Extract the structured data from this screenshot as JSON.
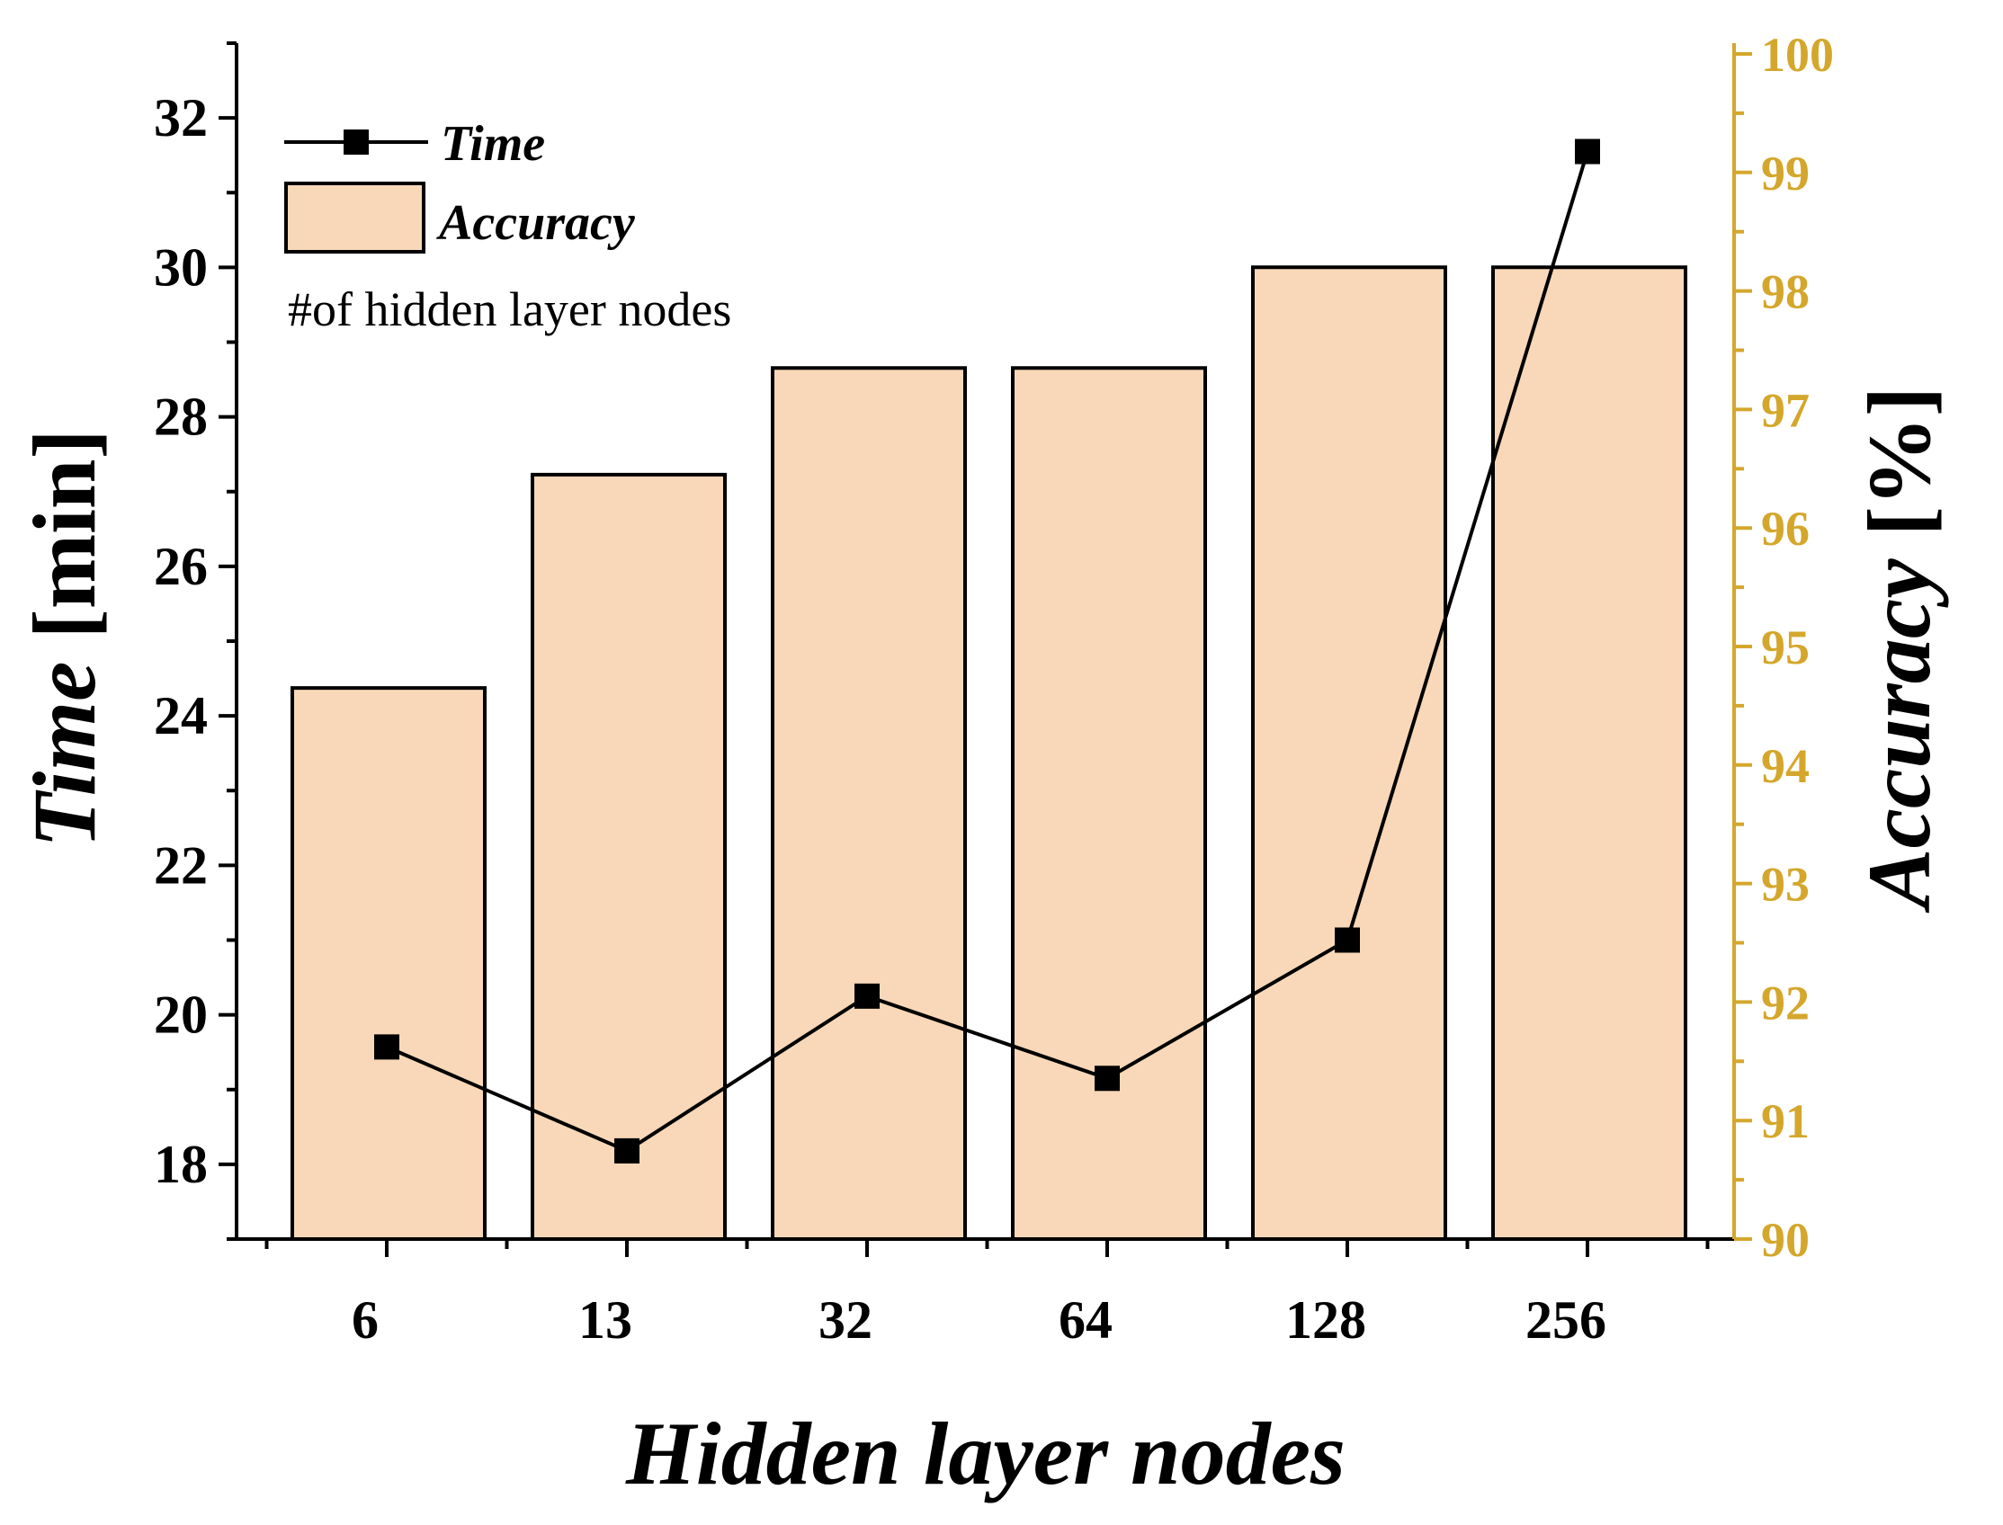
{
  "chart_data": {
    "type": "bar+line",
    "categories": [
      "6",
      "13",
      "32",
      "64",
      "128",
      "256"
    ],
    "xlabel": "Hidden layer nodes",
    "ylabel_left": {
      "italic": "Time",
      "regular": " [min]"
    },
    "ylabel_right": {
      "italic": "Accuracy",
      "regular": " [%]"
    },
    "ylim_left": [
      17,
      33
    ],
    "yticks_left": [
      18,
      20,
      22,
      24,
      26,
      28,
      30,
      32
    ],
    "ylim_right": [
      90,
      100
    ],
    "yticks_right": [
      90,
      91,
      92,
      93,
      94,
      95,
      96,
      97,
      98,
      99,
      100
    ],
    "series": [
      {
        "name": "Accuracy",
        "kind": "bar",
        "axis": "right",
        "color": "#f8d8b8",
        "values": [
          94.65,
          96.45,
          97.35,
          97.35,
          98.2,
          98.2
        ]
      },
      {
        "name": "Time",
        "kind": "line",
        "axis": "left",
        "color": "#000000",
        "marker": "square",
        "values": [
          19.57,
          18.18,
          20.25,
          19.15,
          21.0,
          31.55
        ]
      }
    ],
    "legend": {
      "position": "top-left",
      "time_label": "Time",
      "accuracy_label": "Accuracy",
      "note": "#of hidden layer nodes"
    },
    "right_axis_color": "#d4a72c",
    "grid": false
  }
}
